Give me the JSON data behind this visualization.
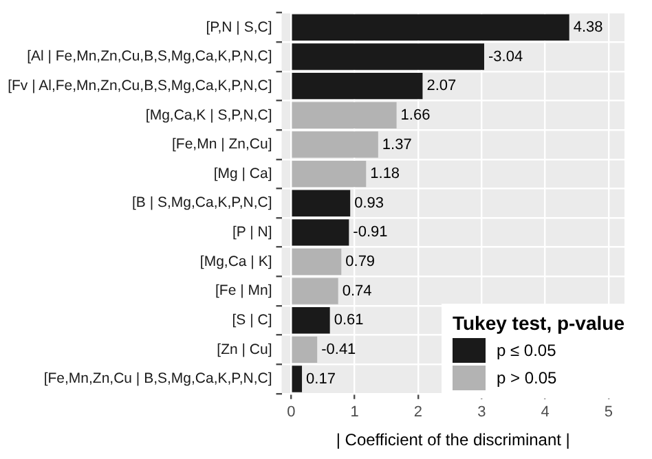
{
  "chart_data": {
    "type": "bar",
    "orientation": "horizontal",
    "xlabel": "| Coefficient of the discriminant |",
    "legend_title": "Tukey test, p-value",
    "legend": "bottom right",
    "grid": true,
    "categories": [
      "[P,N | S,C]",
      "[Al | Fe,Mn,Zn,Cu,B,S,Mg,Ca,K,P,N,C]",
      "[Fv | Al,Fe,Mn,Zn,Cu,B,S,Mg,Ca,K,P,N,C]",
      "[Mg,Ca,K | S,P,N,C]",
      "[Fe,Mn | Zn,Cu]",
      "[Mg | Ca]",
      "[B | S,Mg,Ca,K,P,N,C]",
      "[P | N]",
      "[Mg,Ca | K]",
      "[Fe | Mn]",
      "[S | C]",
      "[Zn | Cu]",
      "[Fe,Mn,Zn,Cu | B,S,Mg,Ca,K,P,N,C]"
    ],
    "series": [
      {
        "name": "p ≤ 0.05",
        "color": "#1a1a1a",
        "values": [
          4.38,
          3.04,
          2.07,
          null,
          null,
          null,
          0.93,
          0.91,
          null,
          null,
          0.61,
          null,
          0.17
        ]
      },
      {
        "name": "p > 0.05",
        "color": "#b3b3b3",
        "values": [
          null,
          null,
          null,
          1.66,
          1.37,
          1.18,
          null,
          null,
          0.79,
          0.74,
          null,
          0.41,
          null
        ]
      }
    ],
    "value_labels": [
      "4.38",
      "-3.04",
      "2.07",
      "1.66",
      "1.37",
      "1.18",
      "0.93",
      "-0.91",
      "0.79",
      "0.74",
      "0.61",
      "-0.41",
      "0.17"
    ],
    "xlim": [
      -0.15,
      5.25
    ],
    "xticks": [
      0,
      1,
      2,
      3,
      4,
      5
    ]
  }
}
